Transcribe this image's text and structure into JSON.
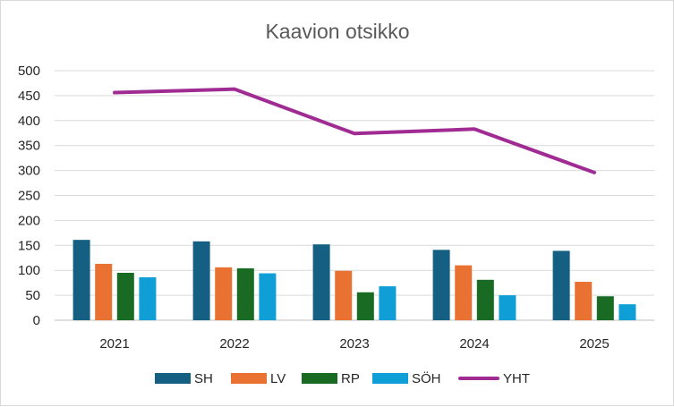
{
  "chart_data": {
    "type": "bar",
    "title": "Kaavion otsikko",
    "categories": [
      "2021",
      "2022",
      "2023",
      "2024",
      "2025"
    ],
    "ylim": [
      0,
      500
    ],
    "yticks": [
      0,
      50,
      100,
      150,
      200,
      250,
      300,
      350,
      400,
      450,
      500
    ],
    "grid": true,
    "legend_position": "bottom",
    "series": [
      {
        "name": "SH",
        "type": "bar",
        "color": "#156082",
        "values": [
          161,
          158,
          152,
          141,
          139
        ]
      },
      {
        "name": "LV",
        "type": "bar",
        "color": "#E97132",
        "values": [
          113,
          106,
          99,
          110,
          77
        ]
      },
      {
        "name": "RP",
        "type": "bar",
        "color": "#196B24",
        "values": [
          95,
          104,
          56,
          81,
          48
        ]
      },
      {
        "name": "SÖH",
        "type": "bar",
        "color": "#0F9ED5",
        "values": [
          86,
          94,
          68,
          50,
          32
        ]
      },
      {
        "name": "YHT",
        "type": "line",
        "color": "#A02B93",
        "values": [
          456,
          463,
          374,
          383,
          296
        ]
      }
    ]
  }
}
